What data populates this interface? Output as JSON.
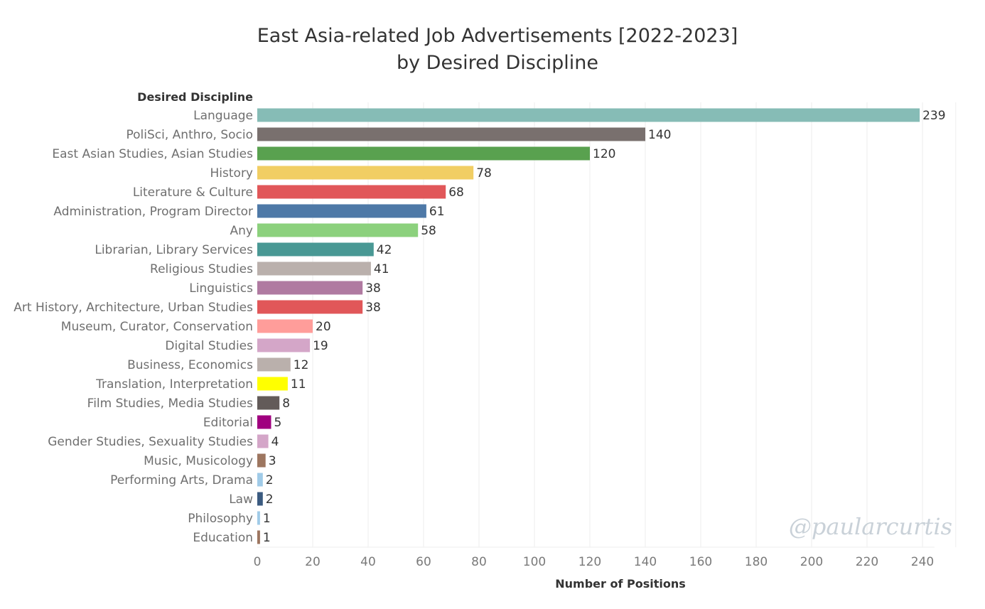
{
  "chart_data": {
    "type": "bar",
    "orientation": "horizontal",
    "title_line1": "East Asia-related Job Advertisements [2022-2023]",
    "title_line2": "by Desired Discipline",
    "category_header": "Desired Discipline",
    "xlabel": "Number of Positions",
    "xlim": [
      0,
      252
    ],
    "xticks": [
      0,
      20,
      40,
      60,
      80,
      100,
      120,
      140,
      160,
      180,
      200,
      220,
      240
    ],
    "grid": true,
    "watermark": "@paularcurtis",
    "categories": [
      "Language",
      "PoliSci, Anthro, Socio",
      "East Asian Studies, Asian Studies",
      "History",
      "Literature & Culture",
      "Administration, Program Director",
      "Any",
      "Librarian, Library Services",
      "Religious Studies",
      "Linguistics",
      "Art History, Architecture, Urban Studies",
      "Museum, Curator, Conservation",
      "Digital Studies",
      "Business, Economics",
      "Translation, Interpretation",
      "Film Studies, Media Studies",
      "Editorial",
      "Gender Studies, Sexuality Studies",
      "Music, Musicology",
      "Performing Arts, Drama",
      "Law",
      "Philosophy",
      "Education"
    ],
    "values": [
      239,
      140,
      120,
      78,
      68,
      61,
      58,
      42,
      41,
      38,
      38,
      20,
      19,
      12,
      11,
      8,
      5,
      4,
      3,
      2,
      2,
      1,
      1
    ],
    "colors": [
      "#86bcb6",
      "#79706e",
      "#59a14f",
      "#f1ce63",
      "#e15759",
      "#4e79a7",
      "#8cd17d",
      "#499894",
      "#bab0ac",
      "#b07aa1",
      "#e15759",
      "#ff9d9a",
      "#d4a6c8",
      "#bab0ac",
      "#ffff00",
      "#635b59",
      "#a0007f",
      "#d4a6c8",
      "#9d7660",
      "#a0cbe8",
      "#3b5b80",
      "#a0cbe8",
      "#9d7660"
    ]
  }
}
